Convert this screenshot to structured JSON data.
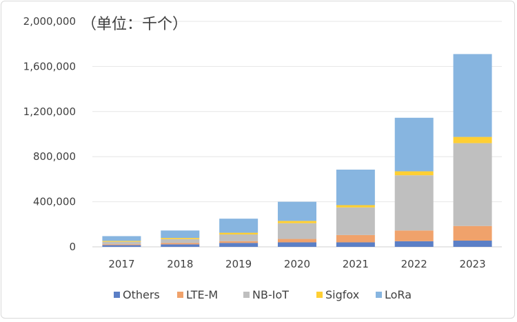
{
  "chart_data": {
    "type": "bar",
    "stacked": true,
    "title": "",
    "unit_label": "（单位：千个）",
    "xlabel": "",
    "ylabel": "",
    "categories": [
      "2017",
      "2018",
      "2019",
      "2020",
      "2021",
      "2022",
      "2023"
    ],
    "ylim": [
      0,
      2000000
    ],
    "yticks": [
      0,
      400000,
      800000,
      1200000,
      1600000,
      2000000
    ],
    "ytick_labels": [
      "0",
      "400,000",
      "800,000",
      "1,200,000",
      "1,600,000",
      "2,000,000"
    ],
    "grid": true,
    "legend_position": "bottom",
    "series": [
      {
        "name": "Others",
        "color": "#5b7fc6",
        "values": [
          15000,
          22000,
          35000,
          40000,
          40000,
          50000,
          55000
        ]
      },
      {
        "name": "LTE-M",
        "color": "#f0a26b",
        "values": [
          8000,
          12000,
          15000,
          30000,
          65000,
          95000,
          130000
        ]
      },
      {
        "name": "NB-IoT",
        "color": "#bfbfbf",
        "values": [
          22000,
          35000,
          60000,
          140000,
          245000,
          490000,
          735000
        ]
      },
      {
        "name": "Sigfox",
        "color": "#ffcf33",
        "values": [
          8000,
          10000,
          15000,
          20000,
          20000,
          35000,
          55000
        ]
      },
      {
        "name": "LoRa",
        "color": "#87b5e0",
        "values": [
          42000,
          66000,
          125000,
          170000,
          315000,
          475000,
          735000
        ]
      }
    ]
  }
}
